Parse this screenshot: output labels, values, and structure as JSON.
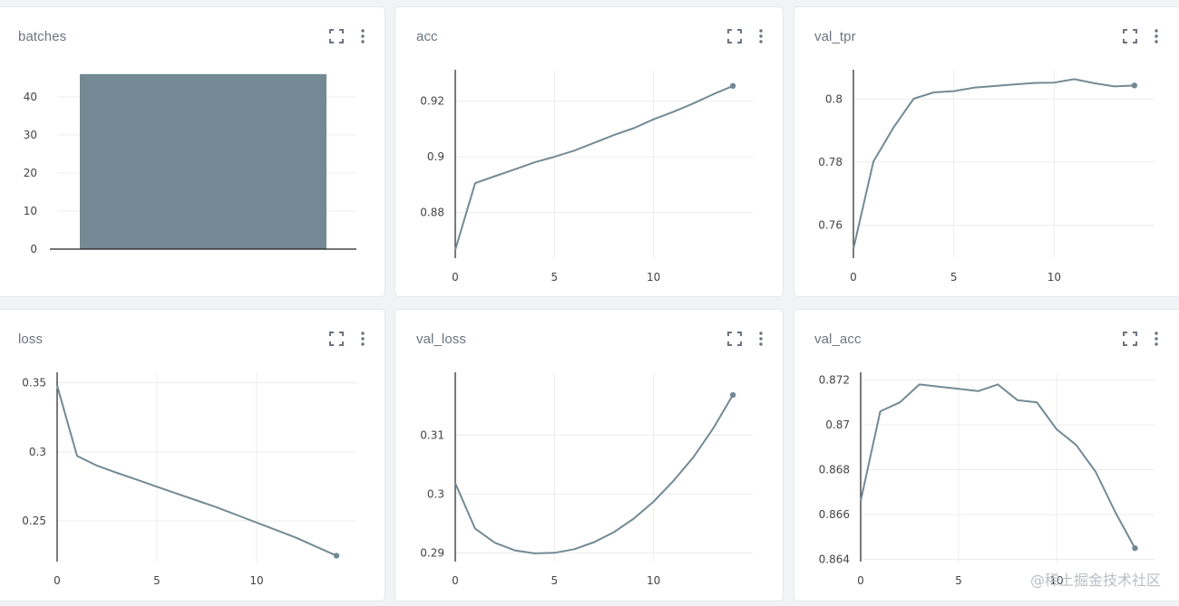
{
  "colors": {
    "series": "#738a95",
    "axis": "#222222",
    "grid": "#ececec",
    "card_bg": "#ffffff",
    "page_bg": "#f1f3f5"
  },
  "icons": [
    "fullscreen-icon",
    "more-vertical-icon"
  ],
  "watermark": "@稀土掘金技术社区",
  "chart_data": [
    {
      "id": "batches",
      "type": "bar",
      "title": "batches",
      "categories": [
        ""
      ],
      "values": [
        46
      ],
      "ylim": [
        0,
        50
      ],
      "yticks": [
        0,
        10,
        20,
        30,
        40
      ],
      "grid": true
    },
    {
      "id": "acc",
      "type": "line",
      "title": "acc",
      "x": [
        0,
        1,
        2,
        3,
        4,
        5,
        6,
        7,
        8,
        9,
        10,
        11,
        12,
        13,
        14
      ],
      "y": [
        0.8665,
        0.8905,
        0.893,
        0.8955,
        0.898,
        0.9,
        0.9022,
        0.905,
        0.9078,
        0.9103,
        0.9135,
        0.9162,
        0.9192,
        0.9225,
        0.9255
      ],
      "xlim": [
        0,
        15
      ],
      "ylim": [
        0.8635,
        0.931
      ],
      "xticks": [
        0,
        5,
        10
      ],
      "yticks": [
        0.88,
        0.9,
        0.92
      ],
      "ytick_labels": [
        "0.88",
        "0.9",
        "0.92"
      ],
      "grid": true
    },
    {
      "id": "val_tpr",
      "type": "line",
      "title": "val_tpr",
      "x": [
        0,
        1,
        2,
        3,
        4,
        5,
        6,
        7,
        8,
        9,
        10,
        11,
        12,
        13,
        14
      ],
      "y": [
        0.7525,
        0.7802,
        0.791,
        0.8001,
        0.8021,
        0.8025,
        0.8036,
        0.8041,
        0.8046,
        0.8051,
        0.8052,
        0.8063,
        0.805,
        0.804,
        0.8043
      ],
      "xlim": [
        0,
        15
      ],
      "ylim": [
        0.7495,
        0.809
      ],
      "xticks": [
        0,
        5,
        10
      ],
      "yticks": [
        0.76,
        0.78,
        0.8
      ],
      "ytick_labels": [
        "0.76",
        "0.78",
        "0.8"
      ],
      "grid": true
    },
    {
      "id": "loss",
      "type": "line",
      "title": "loss",
      "x": [
        0,
        1,
        2,
        3,
        4,
        5,
        6,
        7,
        8,
        9,
        10,
        11,
        12,
        13,
        14
      ],
      "y": [
        0.348,
        0.297,
        0.29,
        0.2848,
        0.2798,
        0.2748,
        0.2698,
        0.2648,
        0.2598,
        0.2543,
        0.2488,
        0.2433,
        0.2377,
        0.2312,
        0.2248
      ],
      "xlim": [
        0,
        15
      ],
      "ylim": [
        0.2205,
        0.357
      ],
      "xticks": [
        0,
        5,
        10
      ],
      "yticks": [
        0.25,
        0.3,
        0.35
      ],
      "ytick_labels": [
        "0.25",
        "0.3",
        "0.35"
      ],
      "grid": true
    },
    {
      "id": "val_loss",
      "type": "line",
      "title": "val_loss",
      "x": [
        0,
        1,
        2,
        3,
        4,
        5,
        6,
        7,
        8,
        9,
        10,
        11,
        12,
        13,
        14
      ],
      "y": [
        0.3018,
        0.2941,
        0.2917,
        0.2904,
        0.2899,
        0.29,
        0.2906,
        0.2918,
        0.2935,
        0.2958,
        0.2987,
        0.3022,
        0.3062,
        0.3111,
        0.3168
      ],
      "xlim": [
        0,
        15
      ],
      "ylim": [
        0.2885,
        0.3205
      ],
      "xticks": [
        0,
        5,
        10
      ],
      "yticks": [
        0.29,
        0.3,
        0.31
      ],
      "ytick_labels": [
        "0.29",
        "0.3",
        "0.31"
      ],
      "grid": true
    },
    {
      "id": "val_acc",
      "type": "line",
      "title": "val_acc",
      "x": [
        0,
        1,
        2,
        3,
        4,
        5,
        6,
        7,
        8,
        9,
        10,
        11,
        12,
        13,
        14
      ],
      "y": [
        0.8666,
        0.8706,
        0.871,
        0.8718,
        0.8717,
        0.8716,
        0.8715,
        0.8718,
        0.8711,
        0.871,
        0.8698,
        0.8691,
        0.8679,
        0.8661,
        0.8645
      ],
      "xlim": [
        0,
        15
      ],
      "ylim": [
        0.8639,
        0.8723
      ],
      "xticks": [
        0,
        5,
        10
      ],
      "yticks": [
        0.864,
        0.866,
        0.868,
        0.87,
        0.872
      ],
      "ytick_labels": [
        "0.864",
        "0.866",
        "0.868",
        "0.87",
        "0.872"
      ],
      "grid": true
    }
  ]
}
